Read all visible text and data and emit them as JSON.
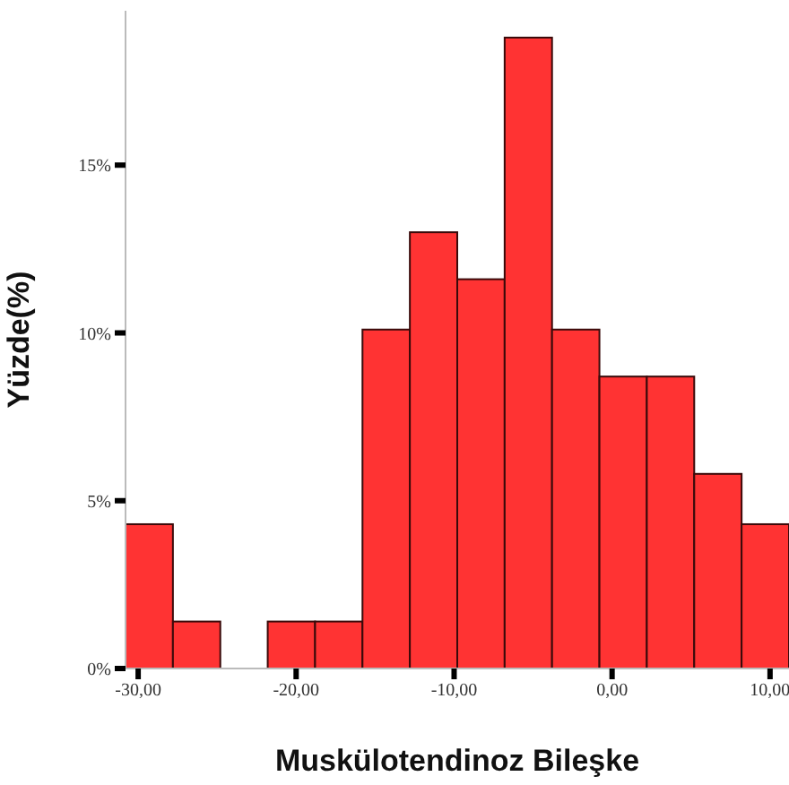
{
  "chart_data": {
    "type": "histogram",
    "xlabel": "Muskülotendinoz Bileşke",
    "ylabel": "Yüzde(%)",
    "bins": [
      -30.8,
      -27.8,
      -24.8,
      -21.8,
      -18.8,
      -15.8,
      -12.8,
      -9.8,
      -6.8,
      -3.8,
      -0.8,
      2.2,
      5.2,
      8.2,
      11.2
    ],
    "values": [
      4.3,
      1.4,
      0,
      1.4,
      1.4,
      10.1,
      13.0,
      11.6,
      18.8,
      10.1,
      8.7,
      8.7,
      5.8,
      4.3
    ],
    "color": "#ff3333",
    "xlim": [
      -30.8,
      11.2
    ],
    "xticks": [
      {
        "value": -30,
        "label": "-30,00"
      },
      {
        "value": -20,
        "label": "-20,00"
      },
      {
        "value": -10,
        "label": "-10,00"
      },
      {
        "value": 0,
        "label": "0,00"
      },
      {
        "value": 10,
        "label": "10,00"
      }
    ],
    "ylim": [
      0,
      19.6
    ],
    "yticks": [
      {
        "value": 0,
        "label": "0%"
      },
      {
        "value": 5,
        "label": "5%"
      },
      {
        "value": 10,
        "label": "10%"
      },
      {
        "value": 15,
        "label": "15%"
      }
    ],
    "grid": false,
    "legend": false
  }
}
